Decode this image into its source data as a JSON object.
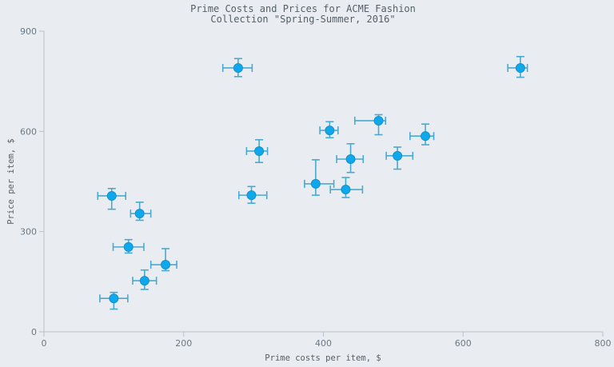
{
  "chart_data": {
    "type": "scatter",
    "title": "Prime Costs and Prices for ACME Fashion Collection \"Spring-Summer, 2016\"",
    "title_lines": [
      "Prime Costs and Prices for ACME Fashion",
      "Collection \"Spring-Summer, 2016\""
    ],
    "xlabel": "Prime costs per item, $",
    "ylabel": "Price per item, $",
    "xlim": [
      0,
      800
    ],
    "ylim": [
      0,
      900
    ],
    "x_ticks": [
      0,
      200,
      400,
      600,
      800
    ],
    "y_ticks": [
      0,
      300,
      600,
      900
    ],
    "grid": false,
    "legend": null,
    "marker_color": "#0ea9ec",
    "error_bar_color": "#4aa9cf",
    "points": [
      {
        "x": 97,
        "y": 407,
        "x_err": [
          -20,
          20
        ],
        "y_err": [
          -40,
          22
        ]
      },
      {
        "x": 137,
        "y": 354,
        "x_err": [
          -13,
          16
        ],
        "y_err": [
          -20,
          34
        ]
      },
      {
        "x": 121,
        "y": 254,
        "x_err": [
          -22,
          22
        ],
        "y_err": [
          -18,
          22
        ]
      },
      {
        "x": 174,
        "y": 201,
        "x_err": [
          -21,
          16
        ],
        "y_err": [
          -18,
          48
        ]
      },
      {
        "x": 144,
        "y": 153,
        "x_err": [
          -17,
          17
        ],
        "y_err": [
          -26,
          32
        ]
      },
      {
        "x": 100,
        "y": 100,
        "x_err": [
          -20,
          20
        ],
        "y_err": [
          -32,
          18
        ]
      },
      {
        "x": 278,
        "y": 790,
        "x_err": [
          -22,
          20
        ],
        "y_err": [
          -26,
          28
        ]
      },
      {
        "x": 308,
        "y": 541,
        "x_err": [
          -18,
          12
        ],
        "y_err": [
          -34,
          34
        ]
      },
      {
        "x": 297,
        "y": 409,
        "x_err": [
          -18,
          22
        ],
        "y_err": [
          -24,
          26
        ]
      },
      {
        "x": 409,
        "y": 603,
        "x_err": [
          -14,
          12
        ],
        "y_err": [
          -22,
          26
        ]
      },
      {
        "x": 479,
        "y": 632,
        "x_err": [
          -34,
          10
        ],
        "y_err": [
          -42,
          18
        ]
      },
      {
        "x": 439,
        "y": 517,
        "x_err": [
          -20,
          18
        ],
        "y_err": [
          -40,
          46
        ]
      },
      {
        "x": 389,
        "y": 443,
        "x_err": [
          -16,
          26
        ],
        "y_err": [
          -34,
          72
        ]
      },
      {
        "x": 432,
        "y": 426,
        "x_err": [
          -22,
          24
        ],
        "y_err": [
          -24,
          36
        ]
      },
      {
        "x": 546,
        "y": 586,
        "x_err": [
          -22,
          12
        ],
        "y_err": [
          -26,
          36
        ]
      },
      {
        "x": 506,
        "y": 527,
        "x_err": [
          -16,
          22
        ],
        "y_err": [
          -40,
          26
        ]
      },
      {
        "x": 682,
        "y": 790,
        "x_err": [
          -18,
          10
        ],
        "y_err": [
          -28,
          34
        ]
      }
    ]
  }
}
